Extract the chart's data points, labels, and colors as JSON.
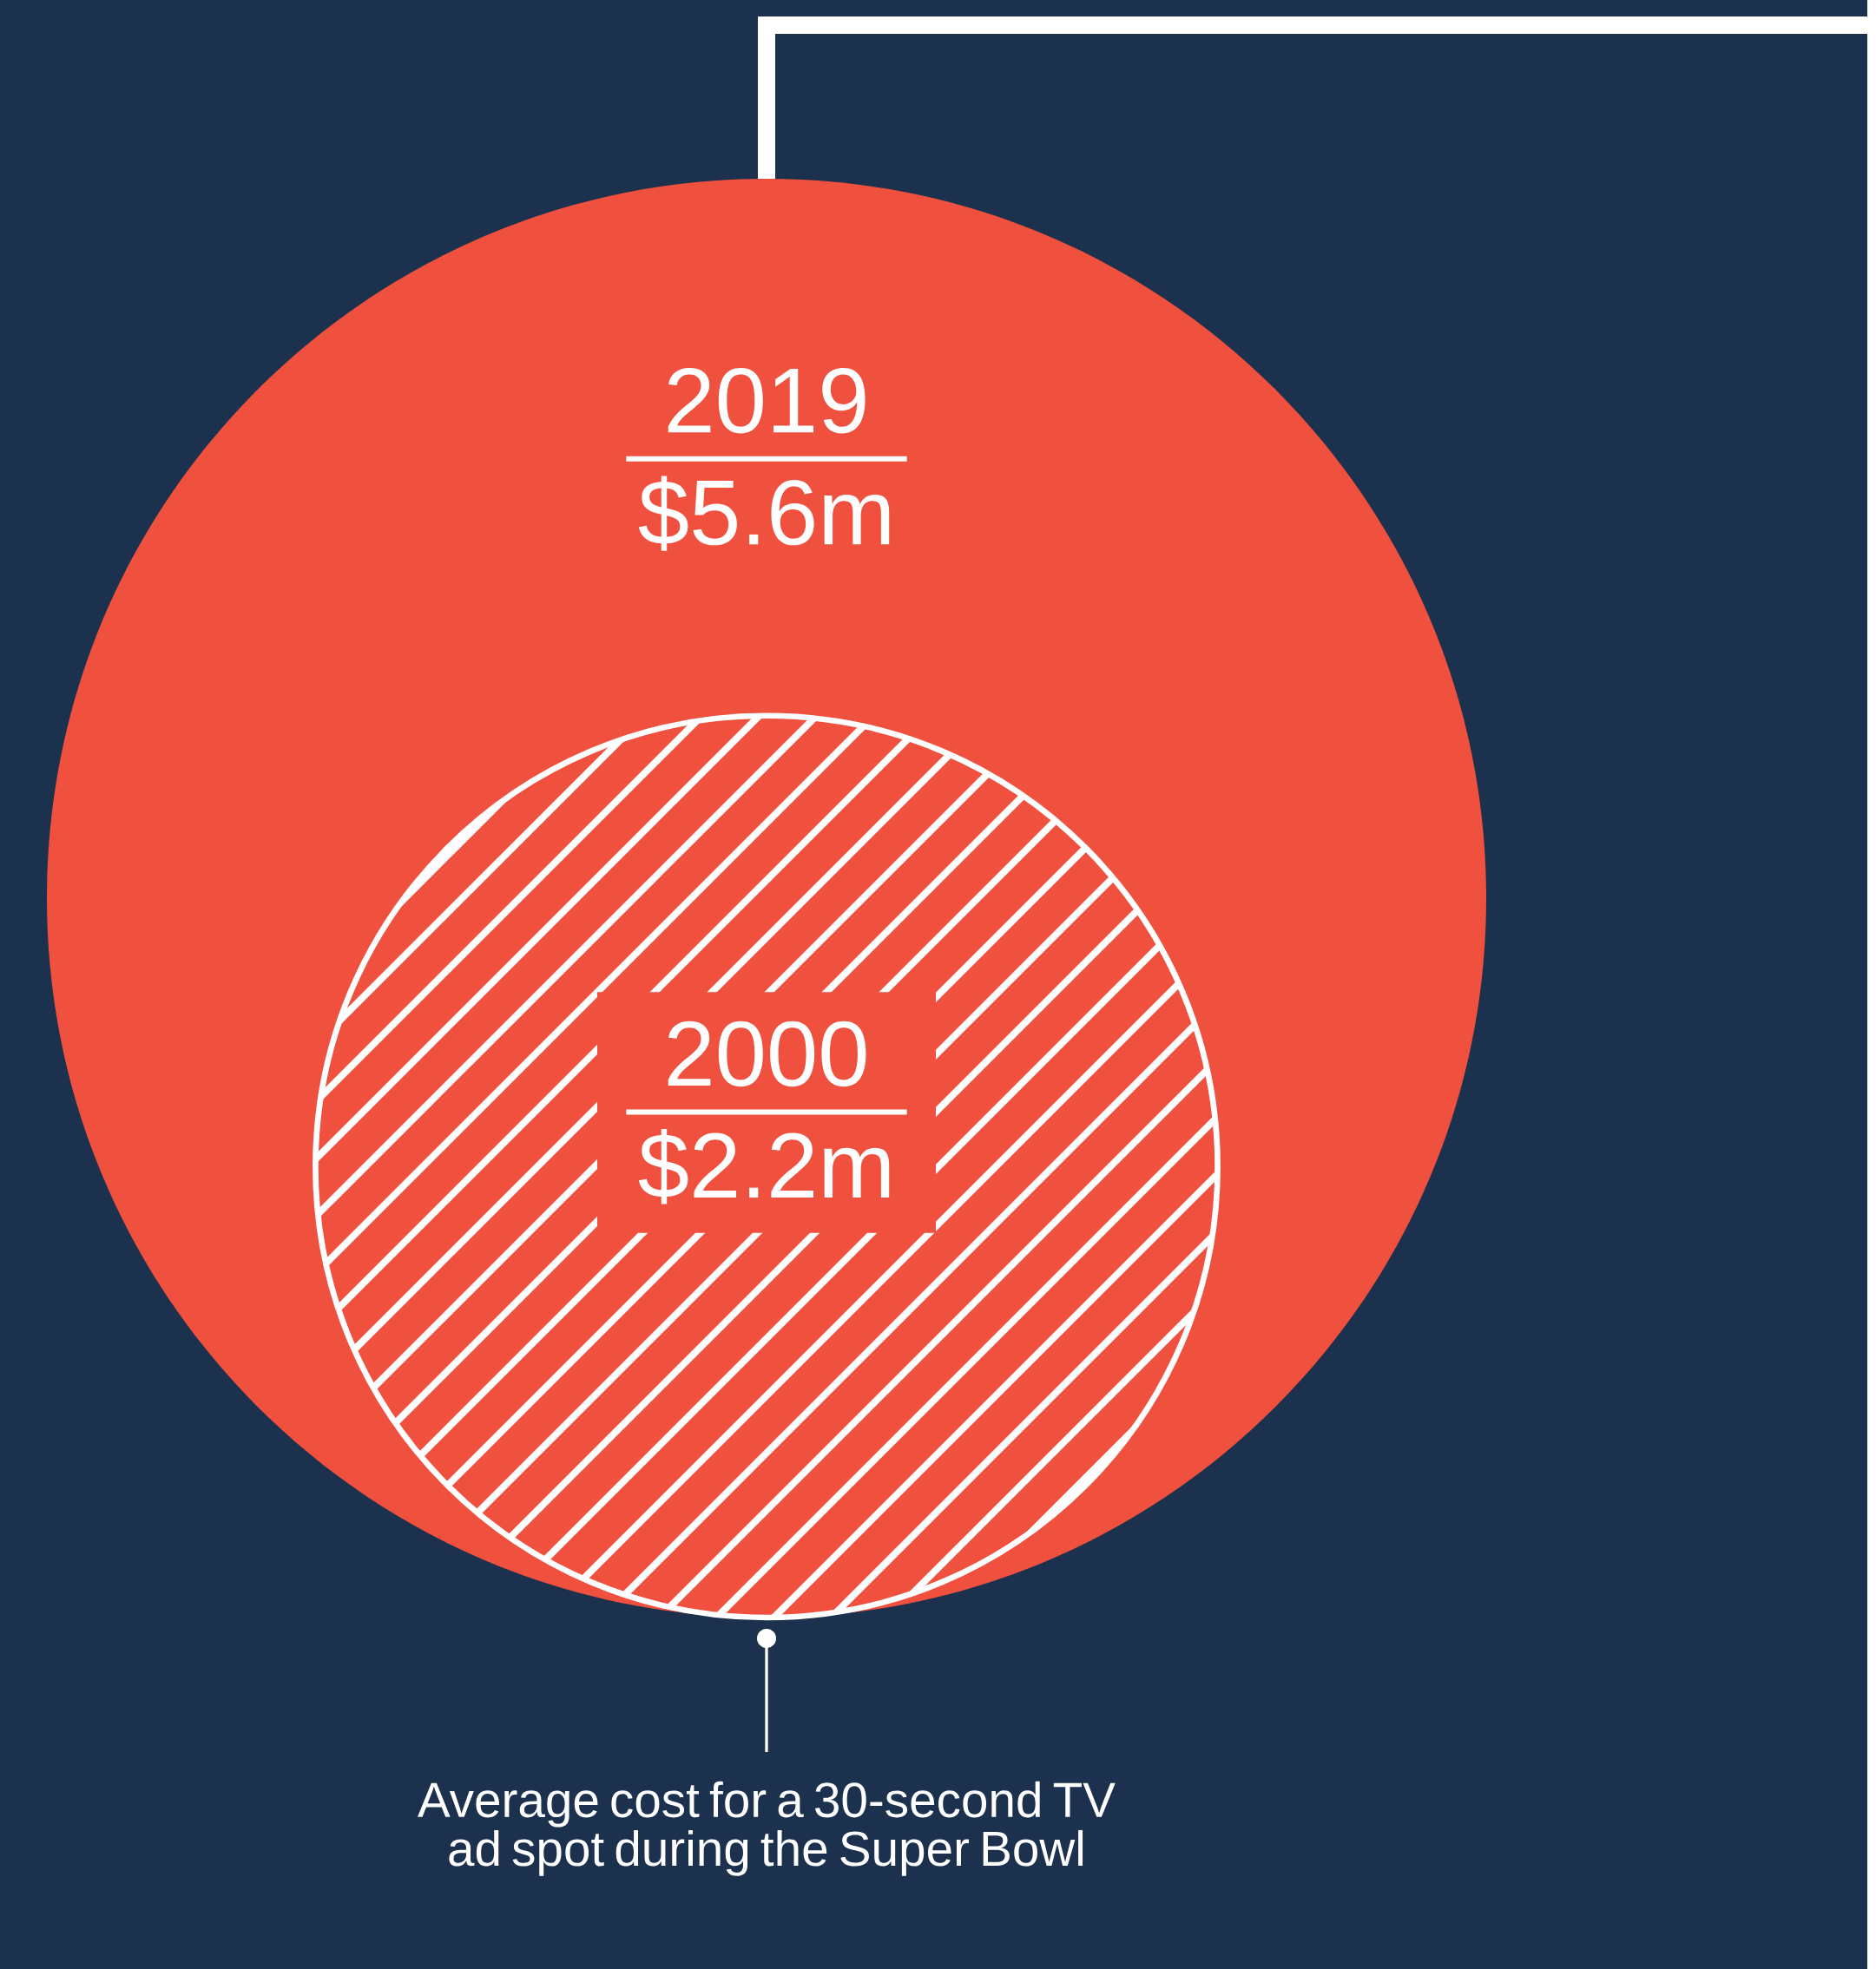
{
  "chart_data": {
    "type": "other",
    "categories": [
      "2019",
      "2000"
    ],
    "values": [
      5.6,
      2.2
    ],
    "value_labels": [
      "$5.6m",
      "$2.2m"
    ],
    "colors": [
      "#f0513f",
      "#f0513f"
    ],
    "annotations": [
      "Average cost for a 30-second TV ad spot during the Super Bowl"
    ]
  }
}
